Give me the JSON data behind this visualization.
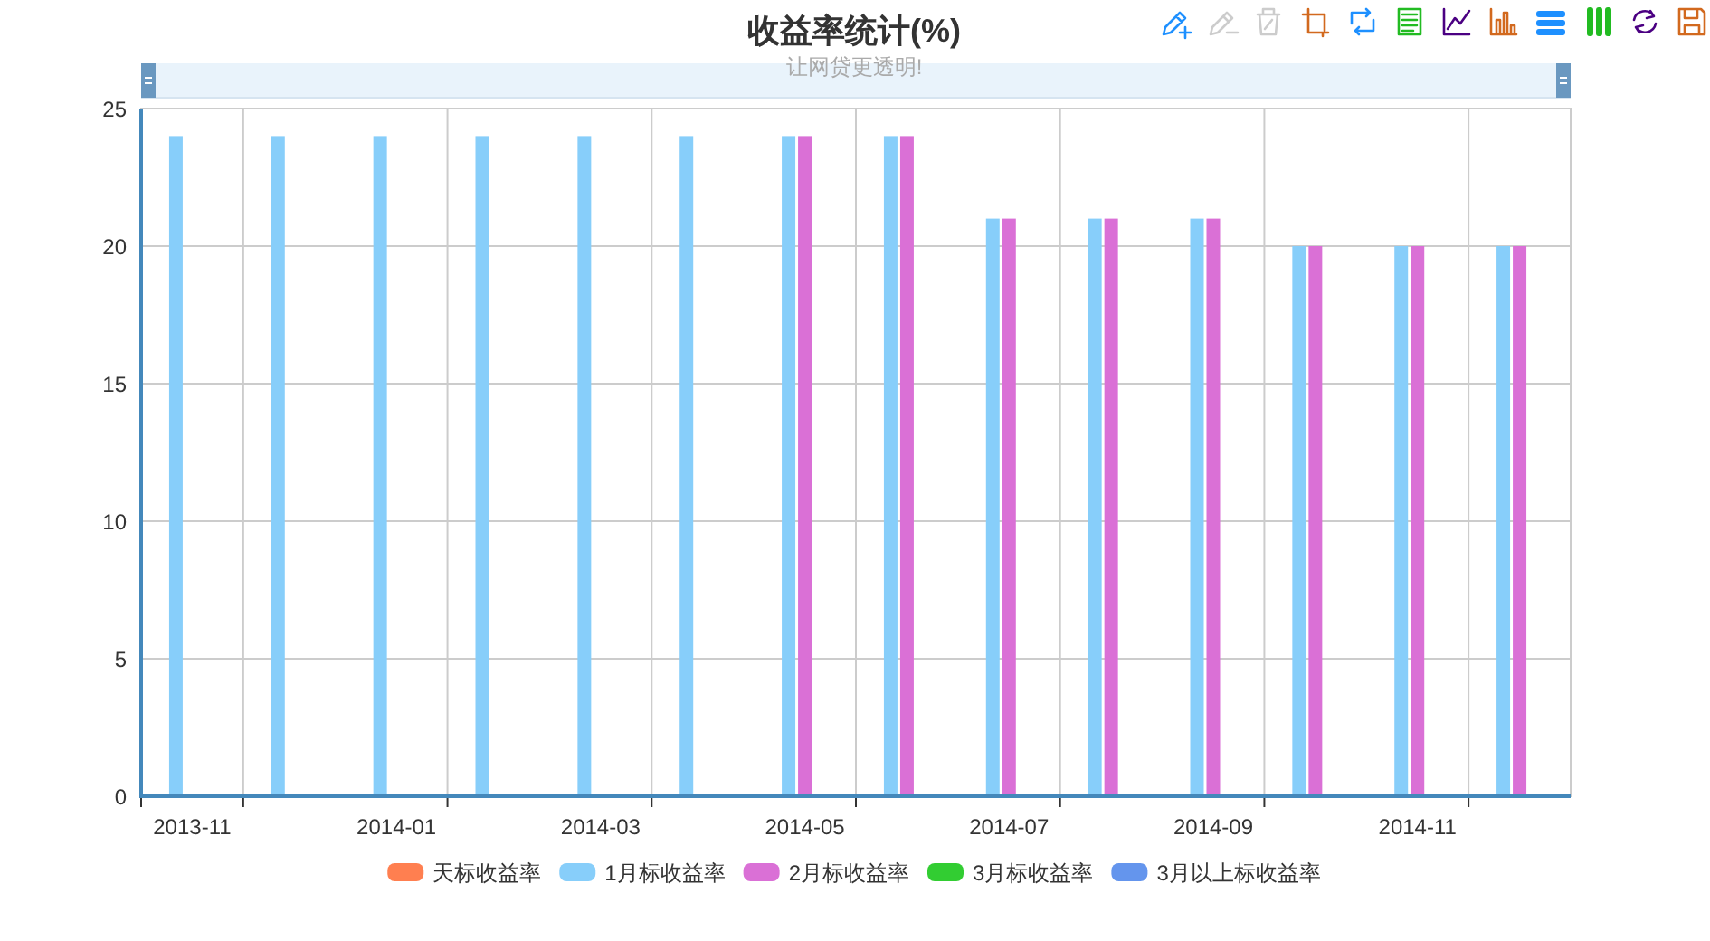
{
  "chart_data": {
    "type": "bar",
    "title": "收益率统计(%)",
    "subtitle": "让网贷更透明!",
    "categories": [
      "2013-11",
      null,
      "2014-01",
      null,
      "2014-03",
      null,
      "2014-05",
      null,
      "2014-07",
      null,
      "2014-09",
      null,
      "2014-11",
      null
    ],
    "series": [
      {
        "name": "天标收益率",
        "color": "#ff7f50",
        "values": [
          null,
          null,
          null,
          null,
          null,
          null,
          null,
          null,
          null,
          null,
          null,
          null,
          null,
          null
        ]
      },
      {
        "name": "1月标收益率",
        "color": "#87cefa",
        "values": [
          24,
          24,
          24,
          24,
          24,
          24,
          24,
          24,
          21,
          21,
          21,
          20,
          20,
          20
        ]
      },
      {
        "name": "2月标收益率",
        "color": "#da70d6",
        "values": [
          null,
          null,
          null,
          null,
          null,
          null,
          24,
          24,
          21,
          21,
          21,
          20,
          20,
          20
        ]
      },
      {
        "name": "3月标收益率",
        "color": "#32cd32",
        "values": [
          null,
          null,
          null,
          null,
          null,
          null,
          null,
          null,
          null,
          null,
          null,
          null,
          null,
          null
        ]
      },
      {
        "name": "3月以上标收益率",
        "color": "#6495ed",
        "values": [
          null,
          null,
          null,
          null,
          null,
          null,
          null,
          null,
          null,
          null,
          null,
          null,
          null,
          null
        ]
      }
    ],
    "ylim": [
      0,
      25
    ],
    "yticks": [
      0,
      5,
      10,
      15,
      20,
      25
    ],
    "grid": true,
    "legend": "bottom"
  }
}
